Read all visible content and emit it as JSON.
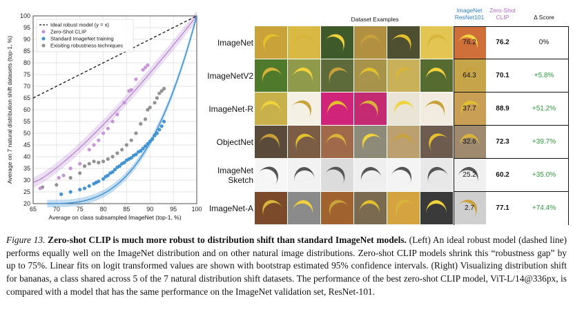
{
  "chart_data": {
    "type": "scatter",
    "xlabel": "Average on class subsampled ImageNet (top-1, %)",
    "ylabel": "Average on 7 natural distribution shift datasets (top-1, %)",
    "xlim": [
      65,
      100
    ],
    "ylim": [
      20,
      100
    ],
    "xticks": [
      65,
      70,
      75,
      80,
      85,
      90,
      95,
      100
    ],
    "yticks": [
      20,
      25,
      30,
      35,
      40,
      45,
      50,
      55,
      60,
      65,
      70,
      75,
      80,
      85,
      90,
      95,
      100
    ],
    "grid": true,
    "legend_position": "top-left",
    "series": [
      {
        "name": "Ideal robust model (y = x)",
        "kind": "dashed-line",
        "color": "#111111",
        "x": [
          65,
          100
        ],
        "y": [
          65,
          100
        ]
      },
      {
        "name": "Zero-Shot CLIP",
        "color": "#c48fd6",
        "x": [
          66.5,
          70.5,
          71.5,
          73,
          75,
          77,
          78,
          79,
          80,
          81,
          82,
          83,
          84.5,
          85.5,
          86,
          87,
          88.5,
          89,
          89.5
        ],
        "y": [
          26.5,
          31,
          32,
          35,
          37,
          43,
          45,
          47,
          50,
          52,
          55,
          58,
          63,
          68,
          68.5,
          73,
          77,
          78,
          79
        ]
      },
      {
        "name": "Standard ImageNet training",
        "color": "#3a8fd0",
        "x": [
          71,
          73,
          75,
          76,
          77,
          78,
          78.5,
          79,
          80,
          80.5,
          81,
          81.5,
          82,
          82.5,
          83,
          83.5,
          84,
          84.5,
          85,
          85.5,
          86,
          86.5,
          87,
          87.5,
          88,
          88.5,
          89,
          89.5,
          90,
          90.5,
          91,
          91.5,
          92,
          92.5,
          93
        ],
        "y": [
          24,
          25,
          26,
          26.5,
          27.5,
          28.5,
          29,
          29.5,
          30.5,
          31.5,
          32,
          33,
          33.5,
          34.5,
          35.5,
          36,
          37,
          37.5,
          38.5,
          39,
          39.5,
          40.5,
          41,
          42,
          42.5,
          43.5,
          44.5,
          45.5,
          46.5,
          47.5,
          49,
          50,
          51.5,
          53,
          55
        ]
      },
      {
        "name": "Exisiting robustness techniques",
        "color": "#8c8c8c",
        "x": [
          67,
          70,
          73,
          75,
          76,
          77,
          78,
          79,
          80,
          81,
          82,
          83,
          84,
          85,
          86,
          87,
          88,
          89,
          89.5,
          90,
          91,
          91.5,
          92,
          92.5,
          93
        ],
        "y": [
          27,
          28,
          31,
          33,
          36,
          37,
          38,
          37.5,
          38,
          39,
          40,
          41.5,
          43,
          45,
          47,
          50,
          54,
          56,
          60,
          61,
          63,
          65,
          67,
          68,
          69
        ]
      }
    ],
    "fit_bands": [
      {
        "name": "clip-fit",
        "color": "#b37fcf"
      },
      {
        "name": "standard-fit",
        "color": "#3a8fd0"
      }
    ]
  },
  "table": {
    "headers": {
      "examples": "Dataset Examples",
      "col1": [
        "ImageNet",
        "ResNet101"
      ],
      "col2": [
        "Zero-Shot",
        "CLIP"
      ],
      "col3": "Δ Score"
    },
    "rows": [
      {
        "name": [
          "ImageNet"
        ],
        "resnet": "76.2",
        "clip": "76.2",
        "delta": "0%",
        "delta_color": "black",
        "thumb_colors": [
          "#c9a23a",
          "#d9b843",
          "#3f5a2a",
          "#b19042",
          "#4d4f30",
          "#e3c553",
          "#cf6f3a"
        ]
      },
      {
        "name": [
          "ImageNetV2"
        ],
        "resnet": "64.3",
        "clip": "70.1",
        "delta": "+5.8%",
        "delta_color": "green",
        "thumb_colors": [
          "#4f7a2b",
          "#8f9a4a",
          "#5d6b3a",
          "#a7944a",
          "#c9b15a",
          "#556b2f",
          "#c5a44a"
        ]
      },
      {
        "name": [
          "ImageNet-R"
        ],
        "resnet": "37.7",
        "clip": "88.9",
        "delta": "+51.2%",
        "delta_color": "green",
        "thumb_colors": [
          "#c8b04a",
          "#f4f0e4",
          "#d0247a",
          "#c42a72",
          "#e9e4d6",
          "#f2ece0",
          "#c99f55"
        ]
      },
      {
        "name": [
          "ObjectNet"
        ],
        "resnet": "32.6",
        "clip": "72.3",
        "delta": "+39.7%",
        "delta_color": "green",
        "thumb_colors": [
          "#5a4a3a",
          "#7b5d45",
          "#a06a4a",
          "#8d8a7a",
          "#bca070",
          "#6e5b50",
          "#9f8a6f"
        ]
      },
      {
        "name": [
          "ImageNet",
          "Sketch"
        ],
        "resnet": "25.2",
        "clip": "60.2",
        "delta": "+35.0%",
        "delta_color": "green",
        "thumb_colors": [
          "#f6f6f6",
          "#f2f2f2",
          "#dcdcdc",
          "#efefef",
          "#f4f4f4",
          "#e8e8e8",
          "#f0f0f0"
        ]
      },
      {
        "name": [
          "ImageNet-A"
        ],
        "resnet": "2.7",
        "clip": "77.1",
        "delta": "+74.4%",
        "delta_color": "green",
        "thumb_colors": [
          "#7a4a2a",
          "#8a8a8a",
          "#a0622e",
          "#7a6a50",
          "#d6a341",
          "#3a3a3a",
          "#cfcfcf"
        ]
      }
    ]
  },
  "caption": {
    "label": "Figure 13.",
    "title": "Zero-shot CLIP is much more robust to distribution shift than standard ImageNet models.",
    "body": "(Left) An ideal robust model (dashed line) performs equally well on the ImageNet distribution and on other natural image distributions. Zero-shot CLIP models shrink this “robustness gap” by up to 75%. Linear fits on logit transformed values are shown with bootstrap estimated 95% confidence intervals. (Right) Visualizing distribution shift for bananas, a class shared across 5 of the 7 natural distribution shift datasets. The performance of the best zero-shot CLIP model, ViT-L/14@336px, is compared with a model that has the same performance on the ImageNet validation set, ResNet-101."
  }
}
